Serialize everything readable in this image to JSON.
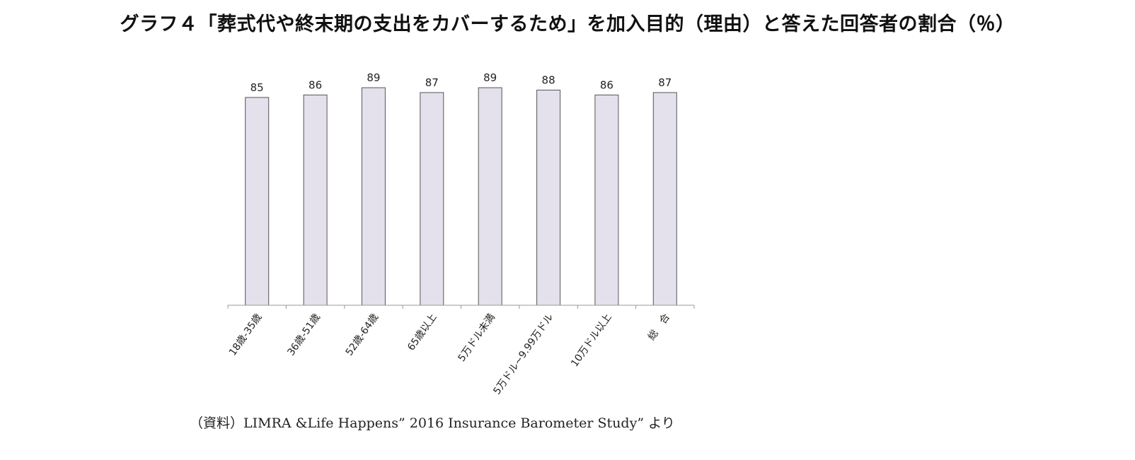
{
  "chart_data": {
    "type": "bar",
    "title": "グラフ４「葬式代や終末期の支出をカバーするため」を加入目的（理由）と答えた回答者の割合（％）",
    "categories": [
      "18歳-35歳",
      "36歳-51歳",
      "52歳-64歳",
      "65歳以上",
      "5万ドル未満",
      "5万ドル~9.99万ドル",
      "10万ドル以上",
      "総　合"
    ],
    "values": [
      85,
      86,
      89,
      87,
      89,
      88,
      86,
      87
    ],
    "xlabel": "",
    "ylabel": "",
    "ylim": [
      0,
      100
    ],
    "grid": false,
    "legend": "none",
    "colors": {
      "bar_fill": "#e4e0ec",
      "bar_stroke": "#555555",
      "axis": "#999999",
      "text": "#222222"
    }
  },
  "source_note": "（資料）LIMRA &Life Happens” 2016 Insurance Barometer Study” より"
}
